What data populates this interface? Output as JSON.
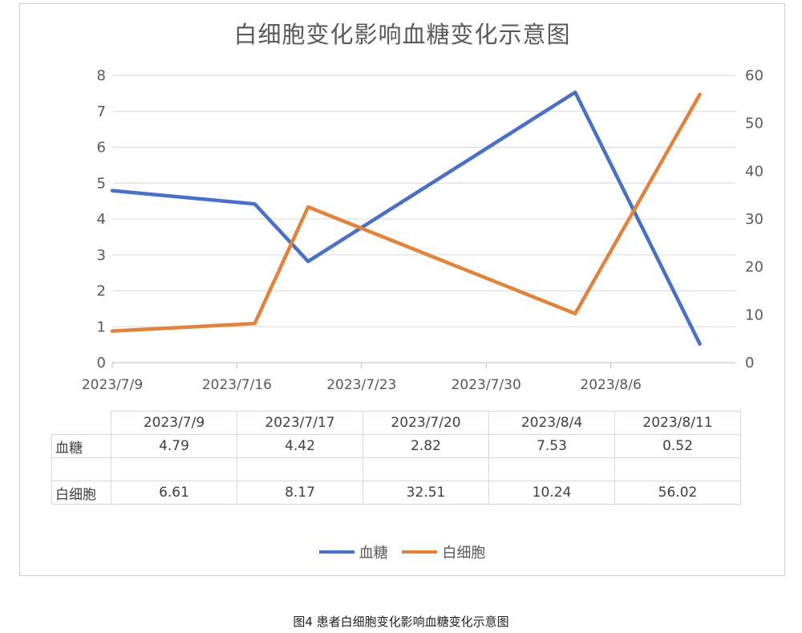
{
  "caption": "图4 患者白细胞变化影响血糖变化示意图",
  "chart_data": {
    "type": "line",
    "title": "白细胞变化影响血糖变化示意图",
    "x_axis_type": "date",
    "x_ticks": [
      "2023/7/9",
      "2023/7/16",
      "2023/7/23",
      "2023/7/30",
      "2023/8/6"
    ],
    "x_range": [
      "2023/7/9",
      "2023/8/13"
    ],
    "y_left": {
      "range": [
        0,
        8
      ],
      "ticks": [
        0,
        1,
        2,
        3,
        4,
        5,
        6,
        7,
        8
      ]
    },
    "y_right": {
      "range": [
        0,
        60
      ],
      "ticks": [
        0,
        10,
        20,
        30,
        40,
        50,
        60
      ]
    },
    "grid": true,
    "legend_position": "bottom",
    "dates": [
      "2023/7/9",
      "2023/7/17",
      "2023/7/20",
      "2023/8/4",
      "2023/8/11"
    ],
    "series": [
      {
        "name": "血糖",
        "axis": "left",
        "color": "#4a6fc7",
        "values": [
          4.79,
          4.42,
          2.82,
          7.53,
          0.52
        ]
      },
      {
        "name": "白细胞",
        "axis": "right",
        "color": "#e0833c",
        "values": [
          6.61,
          8.17,
          32.51,
          10.24,
          56.02
        ]
      }
    ],
    "table": {
      "headers": [
        "2023/7/9",
        "2023/7/17",
        "2023/7/20",
        "2023/8/4",
        "2023/8/11"
      ],
      "rows": [
        {
          "label": "血糖",
          "cells": [
            "4.79",
            "4.42",
            "2.82",
            "7.53",
            "0.52"
          ]
        },
        {
          "label": "",
          "cells": [
            "",
            "",
            "",
            "",
            ""
          ]
        },
        {
          "label": "白细胞",
          "cells": [
            "6.61",
            "8.17",
            "32.51",
            "10.24",
            "56.02"
          ]
        }
      ]
    }
  }
}
